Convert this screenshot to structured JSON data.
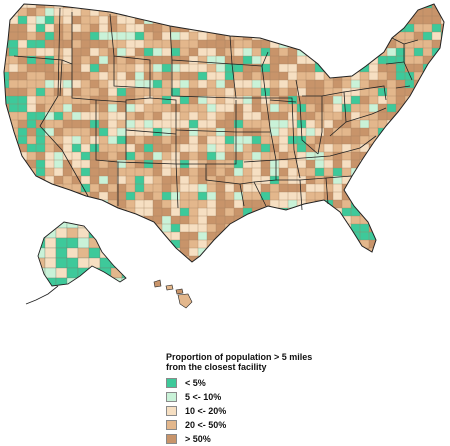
{
  "legend": {
    "title_line1": "Proportion of population > 5 miles",
    "title_line2": "from the closest facility",
    "items": [
      {
        "label": "< 5%",
        "color": "#3ec99a"
      },
      {
        "label": "5 <- 10%",
        "color": "#c9f2d8"
      },
      {
        "label": "10 <- 20%",
        "color": "#f6dfc2"
      },
      {
        "label": "20 <- 50%",
        "color": "#e3b78c"
      },
      {
        "label": "> 50%",
        "color": "#c8946a"
      }
    ]
  },
  "map": {
    "region": "United States counties",
    "border_color": "#222222",
    "county_border_color": "#8a6f58"
  }
}
